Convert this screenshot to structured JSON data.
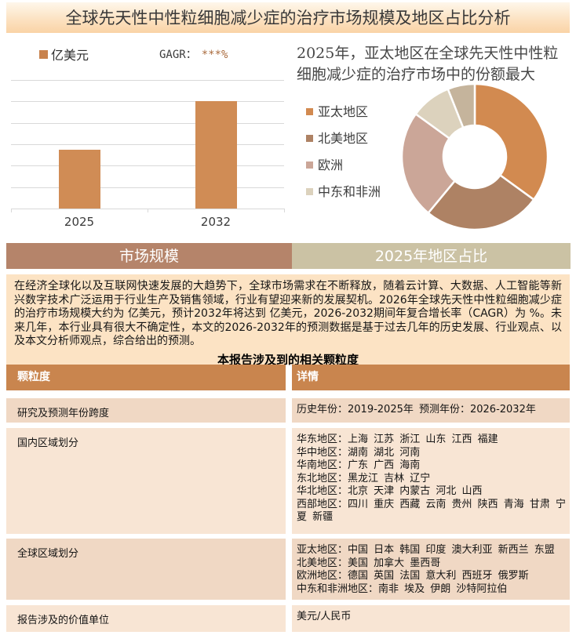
{
  "page_title": "全球先天性中性粒细胞减少症的治疗市场规模及地区占比分析",
  "market_chart": {
    "legend_label": "亿美元",
    "cagr_label": "GAGR：",
    "cagr_value": "***%"
  },
  "region_section": {
    "headline": "2025年，亚太地区在全球先天性中性粒细胞减少症的治疗市场中的份额最大"
  },
  "tabs": [
    {
      "label": "市场规模"
    },
    {
      "label": "2025年地区占比"
    }
  ],
  "summary_paragraph": "在经济全球化以及互联网快速发展的大趋势下，全球市场需求在不断释放，随着云计算、大数据、人工智能等新兴数字技术广泛运用于行业生产及销售领域，行业有望迎来新的发展契机。2026年全球先天性中性粒细胞减少症的治疗市场规模大约为 亿美元，预计2032年将达到 亿美元，2026-2032期间年复合增长率（CAGR）为 %。未来几年，本行业具有很大不确定性，本文的2026-2032年的预测数据是基于过去几年的历史发展、行业观点、以及本文分析师观点，综合给出的预测。",
  "granularity_heading": "本报告涉及到的相关颗粒度",
  "table": {
    "headers": [
      "颗粒度",
      "详情"
    ],
    "rows": [
      {
        "label": "研究及预测年份跨度",
        "details": [
          "历史年份：2019-2025年 预测年份：2026-2032年"
        ]
      },
      {
        "label": "国内区域划分",
        "details": [
          "华东地区：上海 江苏 浙江 山东 江西 福建",
          "华中地区：湖南 湖北 河南",
          "华南地区：广东 广西 海南",
          "东北地区：黑龙江 吉林 辽宁",
          "华北地区：北京 天津 内蒙古 河北 山西",
          "西部地区：四川 重庆 西藏 云南 贵州 陕西 青海 甘肃 宁夏 新疆"
        ]
      },
      {
        "label": "全球区域划分",
        "details": [
          "亚太地区：中国 日本 韩国 印度 澳大利亚 新西兰 东盟",
          "北美地区：美国 加拿大 墨西哥",
          "欧洲地区：德国 英国 法国 意大利 西班牙 俄罗斯",
          "中东和非洲地区：南非 埃及 伊朗 沙特阿拉伯"
        ]
      },
      {
        "label": "报告涉及的价值单位",
        "details": [
          "美元/人民币"
        ]
      }
    ]
  },
  "chart_data": [
    {
      "type": "bar",
      "categories": [
        "2025",
        "2032"
      ],
      "values": [
        2.75,
        5
      ],
      "series_name": "亿美元",
      "annotation": "GAGR：***%",
      "ylim": [
        0,
        6
      ],
      "y_tick_labels_visible": false,
      "gridlines": true,
      "bar_color": "#D08C55",
      "axis_color": "#D9D9D9"
    },
    {
      "type": "pie",
      "donut": true,
      "title": "2025年，亚太地区在全球先天性中性粒细胞减少症的治疗市场中的份额最大",
      "segments": [
        {
          "label": "亚太地区",
          "value": 35,
          "color": "#D28A50"
        },
        {
          "label": "北美地区",
          "value": 26,
          "color": "#AE8264"
        },
        {
          "label": "欧洲",
          "value": 24,
          "color": "#CBA698"
        },
        {
          "label": "中东和非洲",
          "value": 9,
          "color": "#DCD2BD"
        },
        {
          "label": "",
          "value": 6,
          "color": "#C5B49C"
        }
      ],
      "legend_position": "left",
      "visible_legend_labels": [
        "亚太地区",
        "北美地区",
        "欧洲",
        "中东和非洲"
      ]
    }
  ]
}
